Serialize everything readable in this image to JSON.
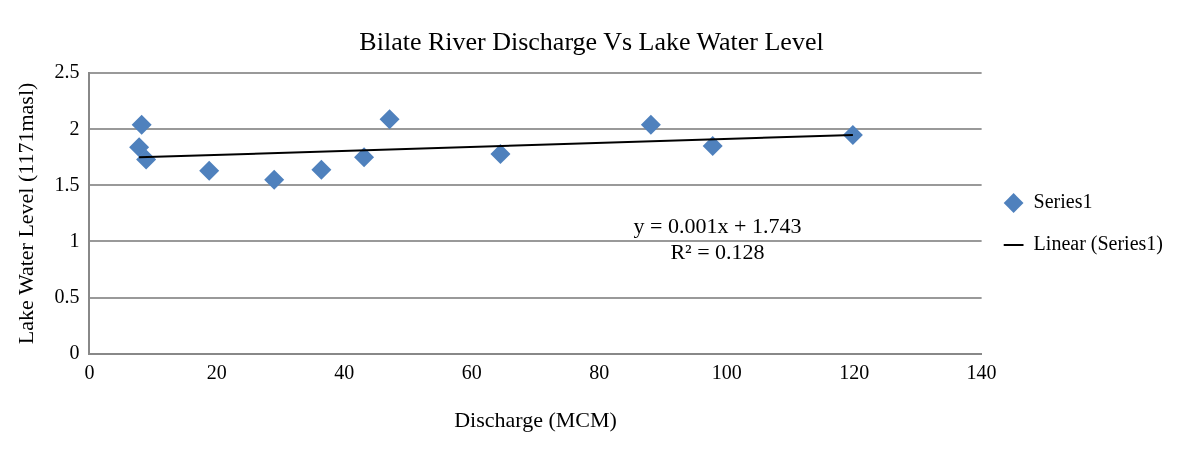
{
  "chart_data": {
    "type": "scatter",
    "title": "Bilate River Discharge Vs Lake Water Level",
    "xlabel": "Discharge (MCM)",
    "ylabel": "Lake Water Level (1171masl)",
    "series": [
      {
        "name": "Series1",
        "type": "scatter",
        "color": "#4f81bd",
        "marker": "diamond",
        "x": [
          8.2,
          7.8,
          8.9,
          18.8,
          29.0,
          36.4,
          43.1,
          47.1,
          64.5,
          88.1,
          97.8,
          119.8
        ],
        "values": [
          2.04,
          1.84,
          1.73,
          1.63,
          1.55,
          1.64,
          1.75,
          2.09,
          1.78,
          2.04,
          1.85,
          1.95
        ]
      },
      {
        "name": "Linear (Series1)",
        "type": "line",
        "color": "#000000",
        "marker": "none",
        "line_style": "solid",
        "x": [
          7.8,
          119.8
        ],
        "values": [
          1.75,
          1.95
        ]
      }
    ],
    "xlim": [
      0,
      140
    ],
    "xticks": [
      0,
      20,
      40,
      60,
      80,
      100,
      120,
      140
    ],
    "ylim": [
      0,
      2.5
    ],
    "yticks": [
      0,
      0.5,
      1,
      1.5,
      2,
      2.5
    ],
    "grid": "y",
    "legend": "right",
    "annotations": [
      "y = 0.001x + 1.743",
      "R² = 0.128"
    ]
  }
}
